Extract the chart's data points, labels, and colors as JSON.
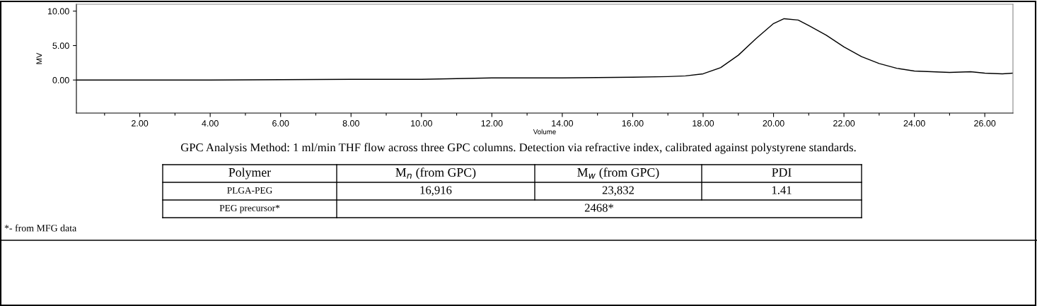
{
  "chart_data": [
    {
      "type": "line",
      "xlabel": "Volume",
      "ylabel": "MV",
      "annotations": [
        "GPC Analysis Method: 1 ml/min THF flow across three GPC columns. Detection via refractive index, calibrated against polystyrene standards."
      ],
      "x": [
        0.2,
        4,
        8,
        10,
        12,
        14,
        16,
        17,
        17.5,
        18,
        18.5,
        19,
        19.5,
        20,
        20.3,
        20.7,
        21,
        21.5,
        22,
        22.5,
        23,
        23.5,
        24,
        25,
        25.6,
        26,
        26.5,
        26.8
      ],
      "series": [
        {
          "color": "#000000",
          "values": [
            0.0,
            0.0,
            0.1,
            0.1,
            0.3,
            0.3,
            0.4,
            0.5,
            0.6,
            0.9,
            1.8,
            3.6,
            6.0,
            8.2,
            8.9,
            8.7,
            7.9,
            6.5,
            4.8,
            3.4,
            2.4,
            1.7,
            1.3,
            1.1,
            1.2,
            1.0,
            0.9,
            1.0
          ]
        }
      ],
      "xlim": [
        0.2,
        26.8
      ],
      "ylim": [
        -4.8,
        11
      ],
      "xticks": [
        {
          "value": 1,
          "label": null
        },
        {
          "value": 2,
          "label": "2.00"
        },
        {
          "value": 3,
          "label": null
        },
        {
          "value": 4,
          "label": "4.00"
        },
        {
          "value": 5,
          "label": null
        },
        {
          "value": 6,
          "label": "6.00"
        },
        {
          "value": 7,
          "label": null
        },
        {
          "value": 8,
          "label": "8.00"
        },
        {
          "value": 9,
          "label": null
        },
        {
          "value": 10,
          "label": "10.00"
        },
        {
          "value": 11,
          "label": null
        },
        {
          "value": 12,
          "label": "12.00"
        },
        {
          "value": 13,
          "label": null
        },
        {
          "value": 14,
          "label": "14.00"
        },
        {
          "value": 15,
          "label": null
        },
        {
          "value": 16,
          "label": "16.00"
        },
        {
          "value": 17,
          "label": null
        },
        {
          "value": 18,
          "label": "18.00"
        },
        {
          "value": 19,
          "label": null
        },
        {
          "value": 20,
          "label": "20.00"
        },
        {
          "value": 21,
          "label": null
        },
        {
          "value": 22,
          "label": "22.00"
        },
        {
          "value": 23,
          "label": null
        },
        {
          "value": 24,
          "label": "24.00"
        },
        {
          "value": 25,
          "label": null
        },
        {
          "value": 26,
          "label": "26.00"
        }
      ],
      "yticks": [
        {
          "value": 0,
          "label": "0.00"
        },
        {
          "value": 5,
          "label": "5.00"
        },
        {
          "value": 10,
          "label": "10.00"
        }
      ],
      "grid": false,
      "legend": false,
      "marker": "none",
      "line_style": "solid"
    },
    {
      "type": "other",
      "annotations": [
        "Polymer",
        "M$_{n}$ (from GPC)",
        "M$_{w}$ (from GPC)",
        "PDI",
        "PLGA-PEG",
        "16,916",
        "23,832",
        "1.41",
        "PEG precursor*",
        "2468*",
        "*- from MFG data"
      ]
    }
  ]
}
